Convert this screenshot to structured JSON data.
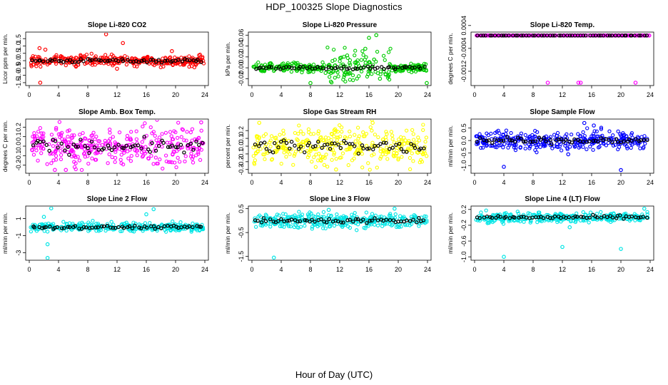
{
  "page": {
    "title": "HDP_100325  Slope Diagnostics",
    "xlabel": "Hour of Day (UTC)"
  },
  "chart_data": [
    {
      "type": "scatter",
      "title": "Slope Li-820 CO2",
      "ylabel": "Licor ppm per min.",
      "color": "#ff0000",
      "xlim": [
        0,
        24
      ],
      "xticks": [
        0,
        4,
        8,
        12,
        16,
        20,
        24
      ],
      "ylim": [
        -1.6,
        1.85
      ],
      "yticks": [
        -1.5,
        -1.0,
        -0.5,
        0.0,
        0.5,
        1.0,
        1.5
      ],
      "ytick_labels": [
        "-1.5",
        "-1.0",
        "-0.5",
        "0.0",
        "0.5",
        "1.0",
        "1.5"
      ],
      "typical_spread": 0.18,
      "outliers": [
        [
          10.5,
          1.8
        ],
        [
          12.8,
          1.2
        ],
        [
          1.5,
          -1.5
        ],
        [
          12.0,
          -0.55
        ],
        [
          19.5,
          0.65
        ],
        [
          2.2,
          0.75
        ],
        [
          1.4,
          0.85
        ]
      ]
    },
    {
      "type": "scatter",
      "title": "Slope Li-820 Pressure",
      "ylabel": "kPa per min.",
      "color": "#00cc00",
      "xlim": [
        0,
        24
      ],
      "xticks": [
        0,
        4,
        8,
        12,
        16,
        20,
        24
      ],
      "ylim": [
        -0.03,
        0.063
      ],
      "yticks": [
        -0.02,
        0.0,
        0.02,
        0.04,
        0.06
      ],
      "ytick_labels": [
        "-0.02",
        "0.00",
        "0.02",
        "0.04",
        "0.06"
      ],
      "typical_spread": 0.004,
      "outliers": [
        [
          16.0,
          0.055
        ],
        [
          17.0,
          0.06
        ],
        [
          8.0,
          -0.028
        ],
        [
          23.9,
          -0.028
        ],
        [
          15.5,
          0.035
        ],
        [
          17.5,
          -0.02
        ]
      ]
    },
    {
      "type": "scatter",
      "title": "Slope Li-820 Temp.",
      "ylabel": "degrees C per min.",
      "color": "#ff00ff",
      "xlim": [
        0,
        24
      ],
      "xticks": [
        0,
        4,
        8,
        12,
        16,
        20,
        24
      ],
      "ylim": [
        -0.00165,
        0.00012
      ],
      "yticks": [
        -0.0012,
        -0.0004,
        0.0004
      ],
      "ytick_labels": [
        "-0.0012",
        "-0.0004",
        "0.0004"
      ],
      "typical_spread": 0.0,
      "outliers": [
        [
          10.0,
          -0.0016
        ],
        [
          14.2,
          -0.0016
        ],
        [
          14.5,
          -0.0016
        ],
        [
          22.0,
          -0.0016
        ]
      ]
    },
    {
      "type": "scatter",
      "title": "Slope Amb. Box Temp.",
      "ylabel": "degrees C per min.",
      "color": "#ff00ff",
      "xlim": [
        0,
        24
      ],
      "xticks": [
        0,
        4,
        8,
        12,
        16,
        20,
        24
      ],
      "ylim": [
        -0.27,
        0.27
      ],
      "yticks": [
        -0.2,
        -0.1,
        0.0,
        0.1,
        0.2
      ],
      "ytick_labels": [
        "-0.2",
        "-0.1",
        "0.0",
        "0.1",
        "0.2"
      ],
      "typical_spread": 0.1,
      "outliers": [
        [
          23.5,
          0.25
        ],
        [
          5.0,
          -0.25
        ],
        [
          3.5,
          -0.25
        ]
      ]
    },
    {
      "type": "scatter",
      "title": "Slope Gas Stream RH",
      "ylabel": "percent per min.",
      "color": "#ffff00",
      "xlim": [
        0,
        24
      ],
      "xticks": [
        0,
        4,
        8,
        12,
        16,
        20,
        24
      ],
      "ylim": [
        -0.33,
        0.33
      ],
      "yticks": [
        -0.3,
        -0.2,
        -0.1,
        0.0,
        0.1,
        0.2
      ],
      "ytick_labels": [
        "-0.3",
        "-0.2",
        "-0.1",
        "0.0",
        "0.1",
        "0.2"
      ],
      "typical_spread": 0.12,
      "outliers": [
        [
          1.0,
          0.3
        ],
        [
          11.5,
          -0.3
        ],
        [
          16.5,
          0.3
        ]
      ]
    },
    {
      "type": "scatter",
      "title": "Slope Sample Flow",
      "ylabel": "ml/min per min.",
      "color": "#0000ff",
      "xlim": [
        0,
        24
      ],
      "xticks": [
        0,
        4,
        8,
        12,
        16,
        20,
        24
      ],
      "ylim": [
        -1.25,
        0.8
      ],
      "yticks": [
        -1.0,
        -0.5,
        0.0,
        0.5
      ],
      "ytick_labels": [
        "-1.0",
        "-0.5",
        "0.0",
        "0.5"
      ],
      "typical_spread": 0.18,
      "outliers": [
        [
          4.0,
          -1.05
        ],
        [
          20.0,
          -1.18
        ],
        [
          15.0,
          0.7
        ],
        [
          16.3,
          0.6
        ],
        [
          12.8,
          -0.55
        ]
      ]
    },
    {
      "type": "scatter",
      "title": "Slope Line 2 Flow",
      "ylabel": "ml/min per min.",
      "color": "#00e5e5",
      "xlim": [
        0,
        24
      ],
      "xticks": [
        0,
        4,
        8,
        12,
        16,
        20,
        24
      ],
      "ylim": [
        -3.7,
        2.3
      ],
      "yticks": [
        -3,
        -1,
        1
      ],
      "ytick_labels": [
        "-3",
        "-1",
        "1"
      ],
      "typical_spread": 0.25,
      "outliers": [
        [
          2.5,
          -3.6
        ],
        [
          2.5,
          -2.0
        ],
        [
          3.0,
          2.2
        ],
        [
          17.0,
          2.1
        ],
        [
          16.0,
          1.5
        ],
        [
          2.0,
          1.2
        ]
      ]
    },
    {
      "type": "scatter",
      "title": "Slope Line 3 Flow",
      "ylabel": "ml/min per min.",
      "color": "#00e5e5",
      "xlim": [
        0,
        24
      ],
      "xticks": [
        0,
        4,
        8,
        12,
        16,
        20,
        24
      ],
      "ylim": [
        -1.6,
        0.55
      ],
      "yticks": [
        -1.5,
        -0.5,
        0.5
      ],
      "ytick_labels": [
        "-1.5",
        "-0.5",
        "0.5"
      ],
      "typical_spread": 0.15,
      "outliers": [
        [
          3.0,
          -1.55
        ],
        [
          19.5,
          0.5
        ],
        [
          10.5,
          0.45
        ]
      ]
    },
    {
      "type": "scatter",
      "title": "Slope Line 4 (LT) Flow",
      "ylabel": "ml/min per min.",
      "color": "#00e5e5",
      "xlim": [
        0,
        24
      ],
      "xticks": [
        0,
        4,
        8,
        12,
        16,
        20,
        24
      ],
      "ylim": [
        -1.05,
        0.25
      ],
      "yticks": [
        -1.0,
        -0.6,
        -0.2,
        0.2
      ],
      "ytick_labels": [
        "-1.0",
        "-0.6",
        "-0.2",
        "0.2"
      ],
      "typical_spread": 0.06,
      "outliers": [
        [
          4.0,
          -1.0
        ],
        [
          12.0,
          -0.75
        ],
        [
          20.0,
          -0.8
        ],
        [
          13.0,
          -0.25
        ],
        [
          23.2,
          0.22
        ]
      ]
    }
  ]
}
